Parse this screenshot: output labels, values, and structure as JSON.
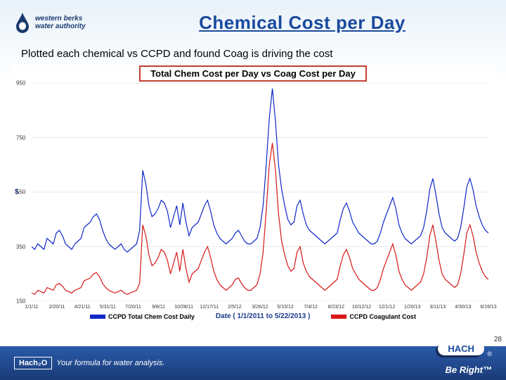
{
  "logo": {
    "line1": "western berks",
    "line2": "water authority",
    "drop_colors": {
      "outer": "#1a3a6e",
      "inner": "#ffffff"
    }
  },
  "title": "Chemical Cost per Day",
  "subtitle": "Plotted each chemical vs CCPD and found Coag is driving the cost",
  "chart": {
    "title": "Total Chem Cost per Day vs Coag Cost per Day",
    "title_border_color": "#c04030",
    "ylabel": "$",
    "ylim": [
      150,
      950
    ],
    "yticks": [
      150,
      350,
      550,
      750,
      950
    ],
    "xticks": [
      "1/1/11",
      "2/20/11",
      "4/21/11",
      "5/31/11",
      "7/20/11",
      "9/8/11",
      "10/28/11",
      "12/17/11",
      "2/5/12",
      "3/26/12",
      "5/15/12",
      "7/4/12",
      "8/23/12",
      "10/12/12",
      "12/1/12",
      "1/20/13",
      "3/11/13",
      "4/30/13",
      "6/19/13"
    ],
    "date_range": "Date  ( 1/1/2011 to 5/22/2013 )",
    "grid_color": "#cfd6e0",
    "background_color": "#ffffff",
    "series": [
      {
        "name": "CCPD Total Chem Cost Daily",
        "color": "#1028c8",
        "line_width": 1.2,
        "values": [
          350,
          340,
          360,
          350,
          340,
          380,
          370,
          360,
          400,
          410,
          390,
          360,
          350,
          340,
          360,
          370,
          380,
          420,
          430,
          440,
          460,
          470,
          450,
          410,
          380,
          360,
          350,
          340,
          350,
          360,
          340,
          330,
          340,
          350,
          360,
          410,
          630,
          580,
          500,
          460,
          470,
          490,
          520,
          510,
          480,
          420,
          460,
          500,
          430,
          510,
          440,
          390,
          420,
          430,
          440,
          470,
          500,
          520,
          480,
          430,
          400,
          380,
          370,
          360,
          370,
          380,
          400,
          410,
          390,
          370,
          360,
          360,
          370,
          380,
          420,
          500,
          650,
          820,
          930,
          810,
          650,
          560,
          500,
          450,
          430,
          440,
          500,
          520,
          470,
          430,
          410,
          400,
          390,
          380,
          370,
          360,
          370,
          380,
          390,
          400,
          450,
          490,
          510,
          480,
          440,
          420,
          400,
          390,
          380,
          370,
          360,
          360,
          370,
          400,
          440,
          470,
          500,
          530,
          490,
          430,
          400,
          380,
          370,
          360,
          370,
          380,
          390,
          420,
          480,
          560,
          600,
          540,
          470,
          420,
          400,
          390,
          380,
          370,
          380,
          420,
          490,
          570,
          600,
          560,
          500,
          460,
          430,
          410,
          400
        ]
      },
      {
        "name": "CCPD Coagulant Cost",
        "color": "#d81818",
        "line_width": 1.2,
        "values": [
          180,
          175,
          190,
          185,
          180,
          200,
          195,
          190,
          210,
          215,
          205,
          190,
          185,
          180,
          190,
          195,
          200,
          225,
          230,
          235,
          250,
          255,
          240,
          215,
          200,
          190,
          185,
          180,
          185,
          190,
          180,
          175,
          180,
          185,
          190,
          215,
          430,
          390,
          320,
          280,
          290,
          310,
          340,
          330,
          300,
          250,
          290,
          330,
          260,
          340,
          270,
          220,
          250,
          260,
          270,
          300,
          330,
          350,
          310,
          260,
          230,
          210,
          200,
          190,
          200,
          210,
          230,
          235,
          215,
          200,
          190,
          190,
          200,
          210,
          250,
          330,
          480,
          650,
          730,
          630,
          470,
          370,
          320,
          280,
          260,
          270,
          330,
          350,
          290,
          260,
          240,
          230,
          220,
          210,
          200,
          190,
          200,
          210,
          220,
          230,
          280,
          320,
          340,
          310,
          270,
          250,
          230,
          220,
          210,
          200,
          190,
          190,
          200,
          230,
          270,
          300,
          330,
          360,
          320,
          260,
          230,
          210,
          200,
          190,
          200,
          210,
          220,
          250,
          310,
          390,
          430,
          370,
          300,
          250,
          230,
          220,
          210,
          200,
          210,
          250,
          320,
          400,
          430,
          390,
          330,
          290,
          260,
          240,
          230
        ]
      }
    ]
  },
  "footer": {
    "hach2o_logo": "Hach₂O",
    "hach2o_tag": "Your formula for water analysis.",
    "hach_badge": "HACH",
    "be_right": "Be Right™"
  },
  "page_number": "28"
}
